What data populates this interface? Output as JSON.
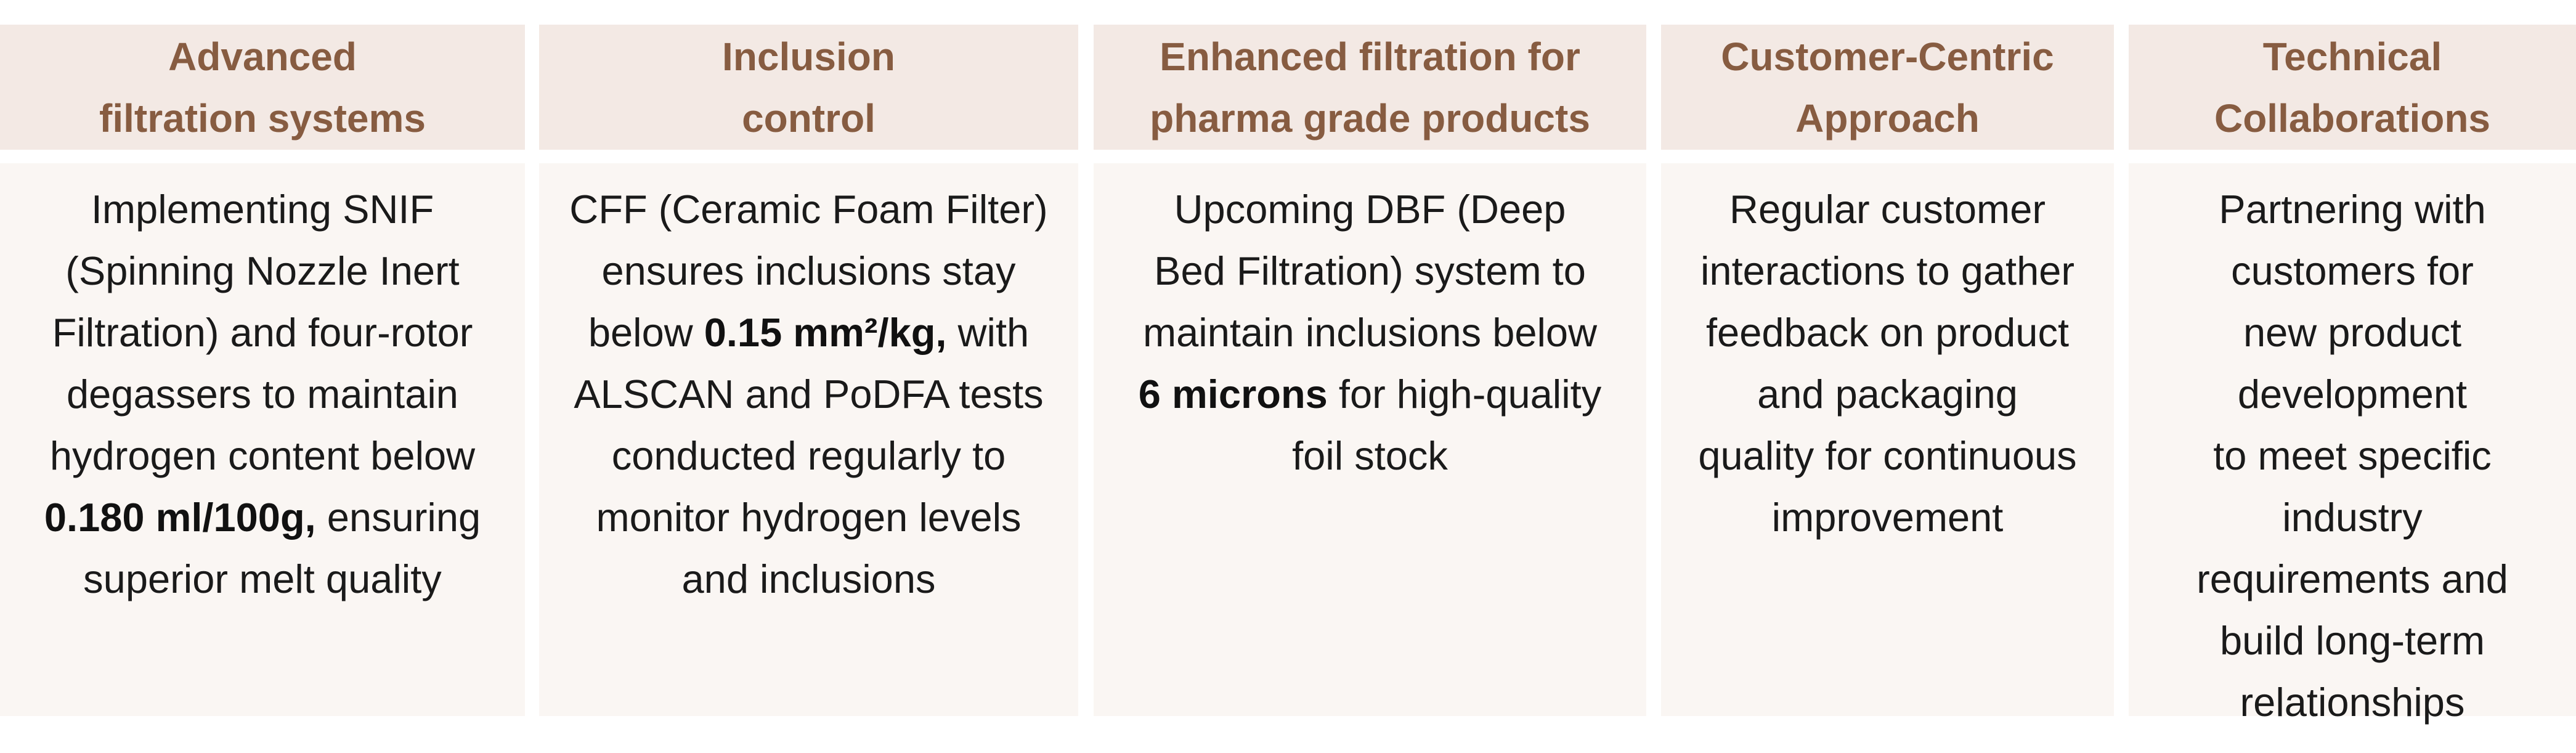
{
  "columns": [
    {
      "heading": [
        "Advanced",
        "filtration systems"
      ],
      "body_lines": [
        [
          "Implementing SNIF"
        ],
        [
          "(Spinning Nozzle Inert"
        ],
        [
          "Filtration) and four-rotor"
        ],
        [
          "degassers to maintain"
        ],
        [
          "hydrogen content below"
        ],
        [
          {
            "b": "0.180 ml/100g,"
          },
          " ensuring"
        ],
        [
          "superior melt quality"
        ]
      ]
    },
    {
      "heading": [
        "Inclusion",
        "control"
      ],
      "body_lines": [
        [
          "CFF (Ceramic Foam Filter)"
        ],
        [
          "ensures inclusions stay"
        ],
        [
          "below ",
          {
            "b": "0.15 mm²/kg,"
          },
          " with"
        ],
        [
          "ALSCAN and PoDFA tests"
        ],
        [
          "conducted regularly to"
        ],
        [
          "monitor hydrogen levels"
        ],
        [
          "and inclusions"
        ]
      ]
    },
    {
      "heading": [
        "Enhanced filtration for",
        "pharma grade products"
      ],
      "body_lines": [
        [
          "Upcoming DBF (Deep"
        ],
        [
          "Bed Filtration) system to"
        ],
        [
          "maintain inclusions below"
        ],
        [
          {
            "b": "6 microns"
          },
          " for high-quality"
        ],
        [
          "foil stock"
        ]
      ]
    },
    {
      "heading": [
        "Customer-Centric",
        "Approach"
      ],
      "body_lines": [
        [
          "Regular customer"
        ],
        [
          "interactions to gather"
        ],
        [
          "feedback on product"
        ],
        [
          "and packaging"
        ],
        [
          "quality for continuous"
        ],
        [
          "improvement"
        ]
      ]
    },
    {
      "heading": [
        "Technical",
        "Collaborations"
      ],
      "body_lines": [
        [
          "Partnering with"
        ],
        [
          "customers for"
        ],
        [
          "new product"
        ],
        [
          "development"
        ],
        [
          "to meet specific"
        ],
        [
          "industry"
        ],
        [
          "requirements and"
        ],
        [
          "build long-term"
        ],
        [
          "relationships"
        ]
      ]
    }
  ]
}
